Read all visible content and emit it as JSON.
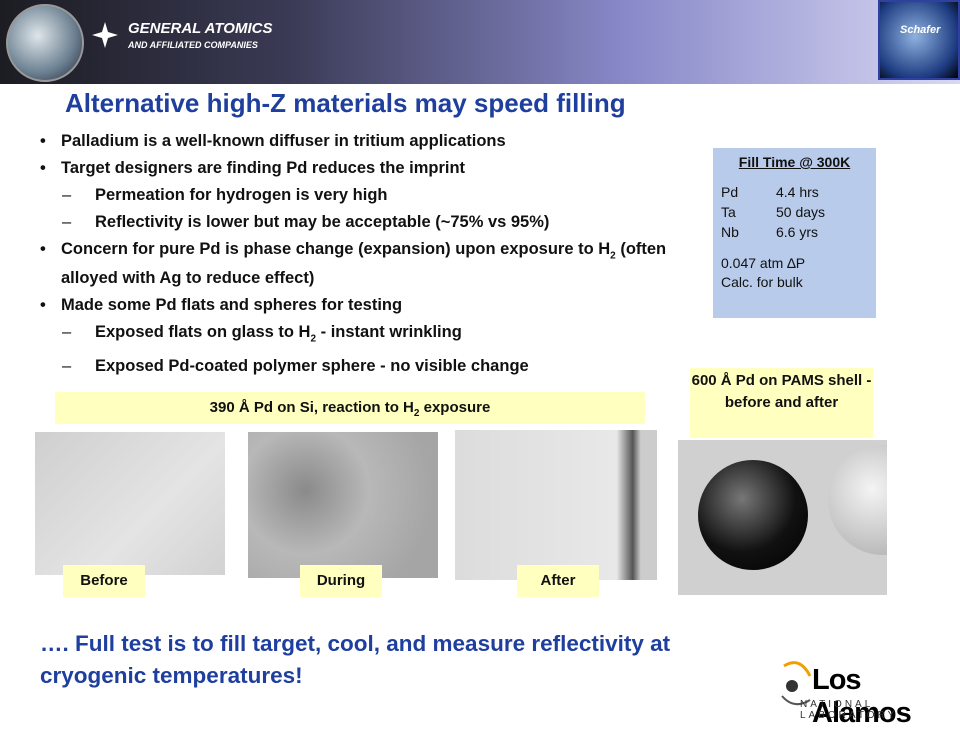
{
  "header": {
    "company": "GENERAL ATOMICS",
    "tagline": "AND AFFILIATED COMPANIES",
    "badge": "Schafer"
  },
  "title": "Alternative high-Z materials may speed filling",
  "bullets": [
    {
      "level": 1,
      "parts": [
        "Palladium is a well-known diffuser in tritium applications"
      ]
    },
    {
      "level": 1,
      "parts": [
        "Target designers are finding Pd reduces the imprint"
      ]
    },
    {
      "level": 2,
      "parts": [
        "Permeation for hydrogen is very high"
      ]
    },
    {
      "level": 2,
      "parts": [
        "Reflectivity is lower but may be acceptable (~75% vs 95%)"
      ]
    },
    {
      "level": 1,
      "parts": [
        "Concern for pure Pd is phase change (expansion) upon exposure to H",
        "2",
        " (often alloyed with Ag to reduce effect)"
      ]
    },
    {
      "level": 1,
      "parts": [
        "Made some Pd flats and spheres for testing"
      ]
    },
    {
      "level": 2,
      "parts": [
        "Exposed flats on glass to H",
        "2",
        " - instant wrinkling"
      ]
    },
    {
      "level": 2,
      "parts": [
        "Exposed Pd-coated polymer sphere - no visible change"
      ]
    }
  ],
  "fill_table": {
    "heading": "Fill Time @ 300K",
    "rows": [
      [
        "Pd",
        "4.4 hrs"
      ],
      [
        "Ta",
        "50 days"
      ],
      [
        "Nb",
        "6.6 yrs"
      ]
    ],
    "note": [
      "0.047 atm ∆P",
      "Calc. for bulk"
    ]
  },
  "flats_caption": [
    "390 Å Pd on Si, reaction to H",
    "2",
    " exposure"
  ],
  "photo_labels": [
    "Before",
    "During",
    "After"
  ],
  "sphere_caption": "600 Å Pd on PAMS shell - before and after",
  "conclusion": "…. Full test is to fill target, cool, and measure reflectivity at cryogenic temperatures!",
  "footer_logo": {
    "name": "Los Alamos",
    "subtitle": "NATIONAL LABORATORY"
  }
}
